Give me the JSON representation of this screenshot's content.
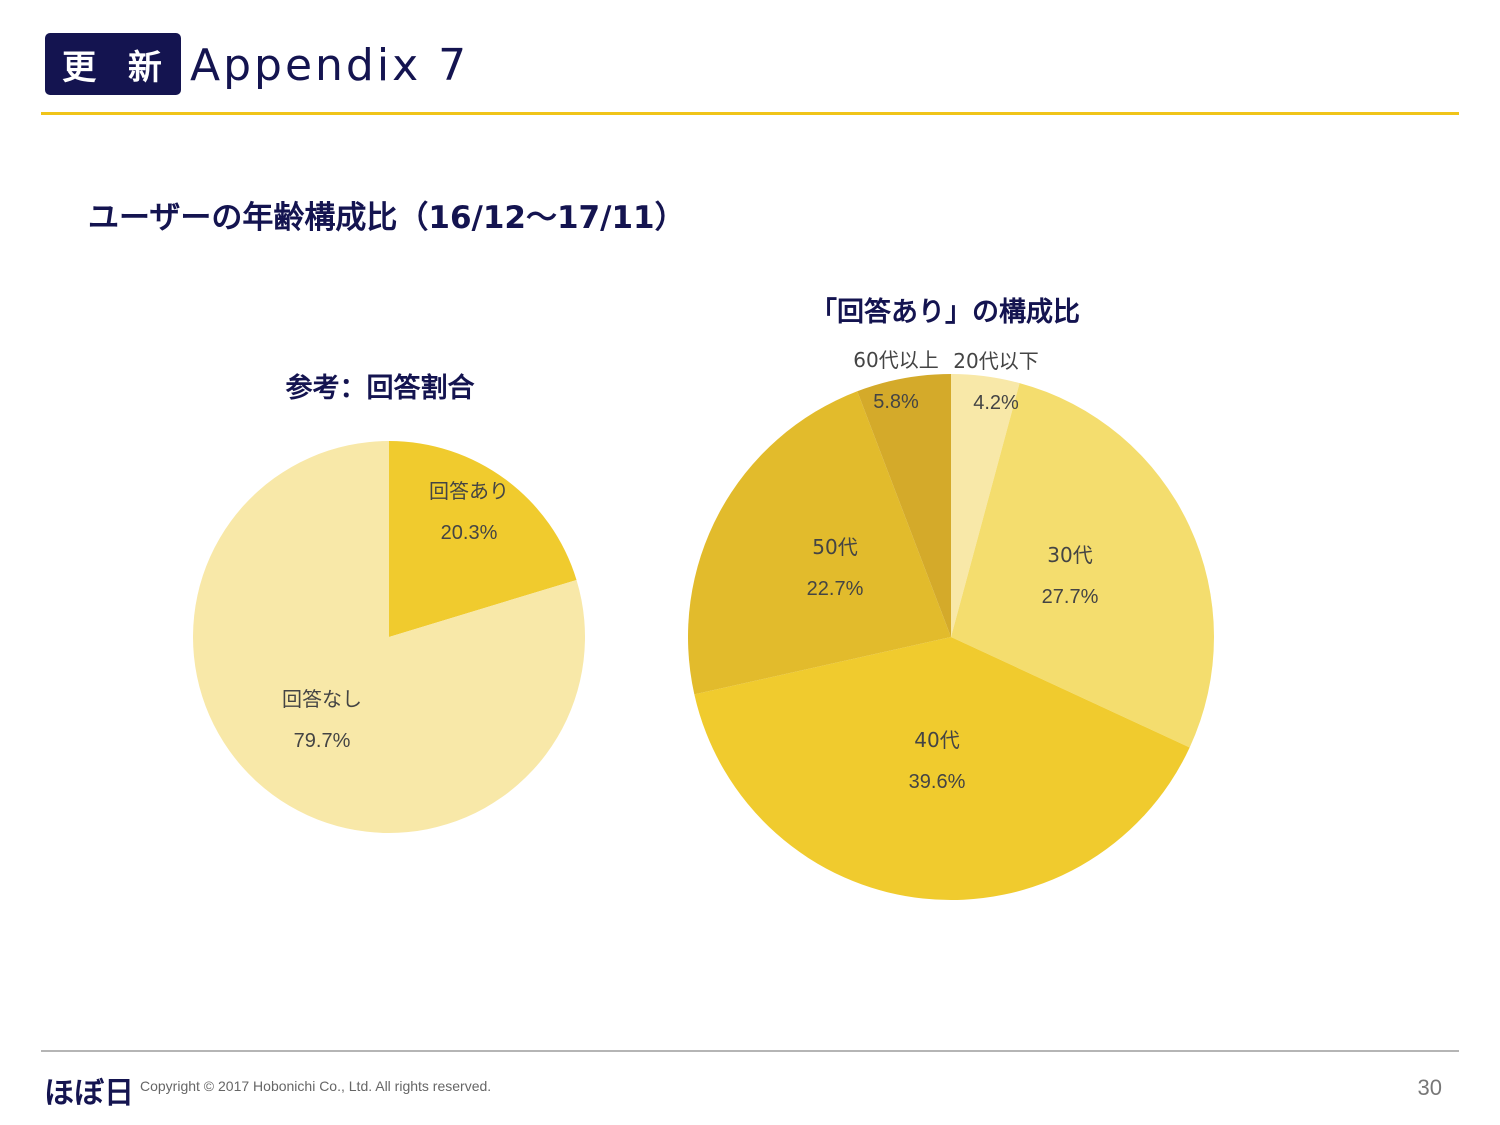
{
  "header": {
    "badge": "更 新",
    "title": "Appendix 7"
  },
  "heading": "ユーザーの年齢構成比（16/12〜17/11）",
  "chart_data": [
    {
      "type": "pie",
      "title": "参考：回答割合",
      "slices": [
        {
          "label": "回答あり",
          "value": 20.3,
          "display": "20.3%",
          "color": "#f0cb2e"
        },
        {
          "label": "回答なし",
          "value": 79.7,
          "display": "79.7%",
          "color": "#f8e8a8"
        }
      ]
    },
    {
      "type": "pie",
      "title": "「回答あり」の構成比",
      "slices": [
        {
          "label": "20代以下",
          "value": 4.2,
          "display": "4.2%",
          "color": "#f8e8a8"
        },
        {
          "label": "30代",
          "value": 27.7,
          "display": "27.7%",
          "color": "#f4dd6e"
        },
        {
          "label": "40代",
          "value": 39.6,
          "display": "39.6%",
          "color": "#f0cb2e"
        },
        {
          "label": "50代",
          "value": 22.7,
          "display": "22.7%",
          "color": "#e2bb2c"
        },
        {
          "label": "60代以上",
          "value": 5.8,
          "display": "5.8%",
          "color": "#d4aa2a"
        }
      ]
    }
  ],
  "footer": {
    "logo": "ほぼ日",
    "copyright": "Copyright © 2017 Hobonichi Co., Ltd. All rights reserved.",
    "page": "30"
  }
}
